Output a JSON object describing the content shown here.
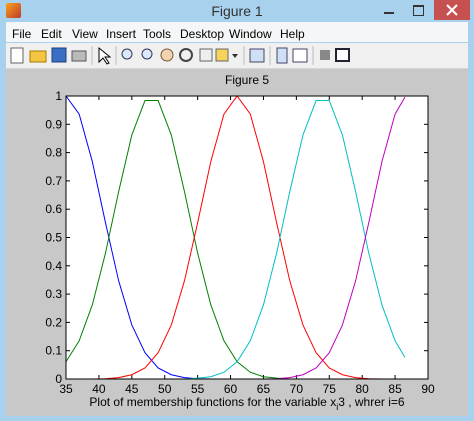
{
  "window": {
    "title": "Figure 1",
    "menu": [
      "File",
      "Edit",
      "View",
      "Insert",
      "Tools",
      "Desktop",
      "Window",
      "Help"
    ]
  },
  "chart_data": {
    "type": "line",
    "title": "Figure 5",
    "xlabel": "Plot of membership functions for the variable x",
    "xlabel_sub": "i",
    "xlabel_rest": "3 , whrer i=6",
    "x": [
      35,
      37,
      39,
      41,
      43,
      45,
      47,
      49,
      51,
      53,
      55,
      57,
      59,
      61,
      63,
      65,
      67,
      69,
      71,
      73,
      75,
      77,
      79,
      81,
      83,
      85,
      86.5
    ],
    "series": [
      {
        "color": "#0000ff",
        "values": [
          1,
          0.936,
          0.768,
          0.552,
          0.347,
          0.191,
          0.093,
          0.039,
          0.015,
          0.005,
          0.001,
          0,
          0,
          0,
          0,
          0,
          0,
          0,
          0,
          0,
          0,
          0,
          0,
          0,
          0,
          0,
          0
        ]
      },
      {
        "color": "#008000",
        "values": [
          0.061,
          0.135,
          0.262,
          0.445,
          0.662,
          0.862,
          0.984,
          0.984,
          0.862,
          0.662,
          0.445,
          0.262,
          0.135,
          0.061,
          0.024,
          0.008,
          0.003,
          0,
          0,
          0,
          0,
          0,
          0,
          0,
          0,
          0,
          0
        ]
      },
      {
        "color": "#ff0000",
        "values": [
          0,
          0,
          0,
          0.001,
          0.005,
          0.015,
          0.039,
          0.093,
          0.191,
          0.347,
          0.552,
          0.768,
          0.936,
          1,
          0.936,
          0.768,
          0.552,
          0.347,
          0.191,
          0.093,
          0.039,
          0.015,
          0.005,
          0.001,
          0,
          0,
          0
        ]
      },
      {
        "color": "#00bfbf",
        "values": [
          0,
          0,
          0,
          0,
          0,
          0,
          0,
          0,
          0,
          0,
          0.003,
          0.008,
          0.024,
          0.061,
          0.135,
          0.262,
          0.445,
          0.662,
          0.862,
          0.984,
          0.984,
          0.862,
          0.662,
          0.445,
          0.262,
          0.135,
          0.076
        ]
      },
      {
        "color": "#bf00bf",
        "values": [
          0,
          0,
          0,
          0,
          0,
          0,
          0,
          0,
          0,
          0,
          0,
          0,
          0,
          0,
          0,
          0,
          0.001,
          0.005,
          0.015,
          0.039,
          0.093,
          0.191,
          0.347,
          0.552,
          0.768,
          0.936,
          0.996
        ]
      }
    ],
    "xlim": [
      35,
      90
    ],
    "xticks": [
      35,
      40,
      45,
      50,
      55,
      60,
      65,
      70,
      75,
      80,
      85,
      90
    ],
    "ylim": [
      0,
      1
    ],
    "yticks": [
      0,
      0.1,
      0.2,
      0.3,
      0.4,
      0.5,
      0.6,
      0.7,
      0.8,
      0.9,
      1
    ],
    "grid": false
  }
}
